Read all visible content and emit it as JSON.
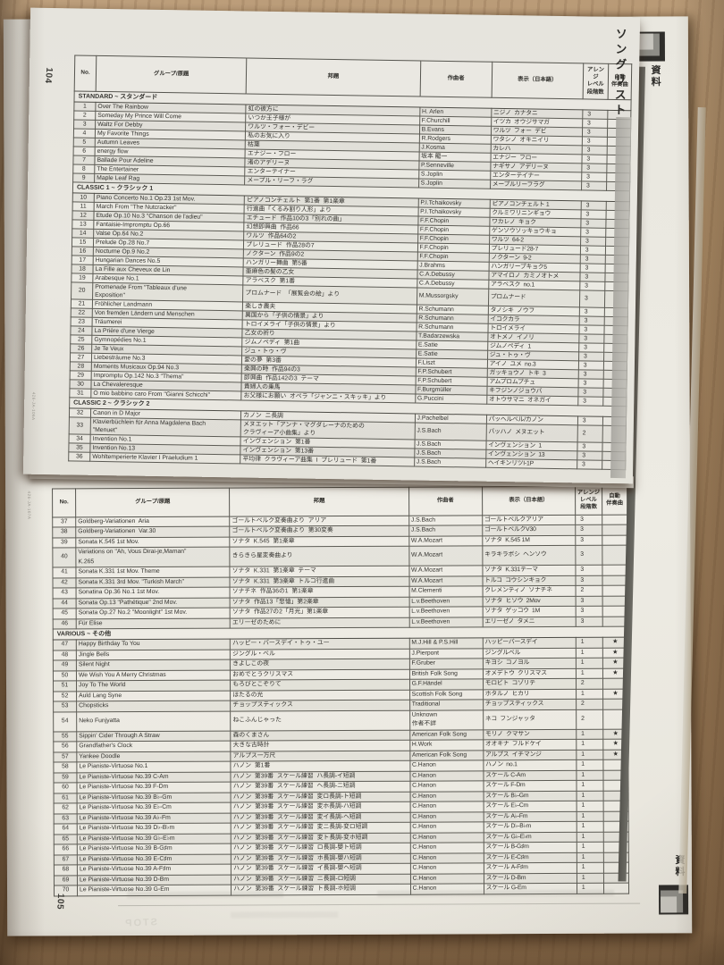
{
  "labels": {
    "song_list": "ソングリスト",
    "shiryo": "資料"
  },
  "table_headers": {
    "no": "No.",
    "group": "グループ/原題",
    "title": "邦題",
    "composer": "作曲者",
    "display": "表示（日本語）",
    "level": "アレンジ\nレベル\n段階数",
    "auto": "自動\n伴奏曲"
  },
  "page_top": {
    "page_number": "104",
    "side_code": "426-JA-106A",
    "blocks": [
      {
        "section": "STANDARD ~ スタンダード"
      },
      [
        "1",
        "Over The Rainbow",
        "虹の彼方に",
        "H. Arlen",
        "ニジノ  カナタニ",
        "3",
        ""
      ],
      [
        "2",
        "Someday My Prince Will Come",
        "いつか王子様が",
        "F.Churchill",
        "イツカ  オウジサマガ",
        "3",
        ""
      ],
      [
        "3",
        "Waltz For Debby",
        "ワルツ・フォー・デビー",
        "B.Evans",
        "ワルツ  フォー  デビ",
        "3",
        ""
      ],
      [
        "4",
        "My Favorite Things",
        "私のお気に入り",
        "R.Rodgers",
        "ワタシノ  オキニイリ",
        "3",
        ""
      ],
      [
        "5",
        "Autumn Leaves",
        "枯葉",
        "J.Kosma",
        "カレハ",
        "3",
        ""
      ],
      [
        "6",
        "energy flow",
        "エナジー・フロー",
        "坂本 龍一",
        "エナジー  フロー",
        "3",
        ""
      ],
      [
        "7",
        "Ballade Pour Adeline",
        "渚のアデリーヌ",
        "P.Senneville",
        "ナギサノ  アデリーヌ",
        "3",
        ""
      ],
      [
        "8",
        "The Entertainer",
        "エンターテイナー",
        "S.Joplin",
        "エンターテイナー",
        "3",
        ""
      ],
      [
        "9",
        "Maple Leaf Rag",
        "メープル・リーフ・ラグ",
        "S.Joplin",
        "メープルリーフラグ",
        "3",
        ""
      ],
      {
        "section": "CLASSIC 1 ~ クラシック 1"
      },
      [
        "10",
        "Piano Concerto No.1 Op.23 1st Mov.",
        "ピアノコンチェルト  第1番  第1楽章",
        "P.I.Tchaikovsky",
        "ピアノコンチェルト 1",
        "3",
        ""
      ],
      [
        "11",
        "March From \"The Nutcracker\"",
        "行進曲「くるみ割り人形」より",
        "P.I.Tchaikovsky",
        "クルミワリニンギョウ",
        "3",
        ""
      ],
      [
        "12",
        "Etude Op.10 No.3 \"Chanson de l'adieu\"",
        "エチュード  作品10の3「別れの曲」",
        "F.F.Chopin",
        "ワカレノ  キョク",
        "3",
        ""
      ],
      [
        "13",
        "Fantaisie-Impromptu Op.66",
        "幻想即興曲  作品66",
        "F.F.Chopin",
        "ゲンソウソッキョウキョ",
        "3",
        ""
      ],
      [
        "14",
        "Valse Op.64 No.2",
        "ワルツ  作品64の2",
        "F.F.Chopin",
        "ワルツ  64-2",
        "3",
        ""
      ],
      [
        "15",
        "Prelude Op.28 No.7",
        "プレリュード  作品28の7",
        "F.F.Chopin",
        "プレリュード28-7",
        "3",
        ""
      ],
      [
        "16",
        "Nocturne Op.9 No.2",
        "ノクターン  作品9の2",
        "F.F.Chopin",
        "ノクターン  9-2",
        "3",
        ""
      ],
      [
        "17",
        "Hungarian Dances No.5",
        "ハンガリー舞曲  第5番",
        "J.Brahms",
        "ハンガリーブキョク5",
        "3",
        ""
      ],
      [
        "18",
        "La Fille aux Cheveux de Lin",
        "亜麻色の髪の乙女",
        "C.A.Debussy",
        "アマイロノ  カミノオトメ",
        "3",
        ""
      ],
      [
        "19",
        "Arabesque No.1",
        "アラベスク  第1番",
        "C.A.Debussy",
        "アラベスク  no.1",
        "3",
        ""
      ],
      [
        "20",
        "Promenade From \"Tableaux d'une\nExposition\"",
        "プロムナード  「展覧会の絵」より",
        "M.Mussorgsky",
        "プロムナード",
        "3",
        ""
      ],
      [
        "21",
        "Fröhlicher Landmann",
        "楽しき農夫",
        "R.Schumann",
        "タノシキ  ノウフ",
        "3",
        ""
      ],
      [
        "22",
        "Von fremden Ländern und Menschen",
        "異国から「子供の情景」より",
        "R.Schumann",
        "イコクカラ",
        "3",
        ""
      ],
      [
        "23",
        "Träumerei",
        "トロイメライ「子供の情景」より",
        "R.Schumann",
        "トロイメライ",
        "3",
        ""
      ],
      [
        "24",
        "La Prière d'une Vierge",
        "乙女の祈り",
        "T.Badarzewska",
        "オトメノ  イノリ",
        "3",
        ""
      ],
      [
        "25",
        "Gymnopédies No.1",
        "ジムノペディ  第1曲",
        "E.Satie",
        "ジムノペディ  1",
        "3",
        ""
      ],
      [
        "26",
        "Je Te Veux",
        "ジュ・トゥ・ヴ",
        "E.Satie",
        "ジュ・トゥ・ヴ",
        "3",
        ""
      ],
      [
        "27",
        "Liebesträume No.3",
        "愛の夢  第3番",
        "F.Liszt",
        "アイノ  ユメ  no.3",
        "3",
        ""
      ],
      [
        "28",
        "Moments Musicaux Op.94 No.3",
        "楽興の時  作品94の3",
        "F.P.Schubert",
        "ガッキョウノ  トキ  3",
        "3",
        ""
      ],
      [
        "29",
        "Impromptu Op.142 No.3 \"Thema\"",
        "即興曲  作品142の3  テーマ",
        "F.P.Schubert",
        "アムプロムプチュ",
        "3",
        ""
      ],
      [
        "30",
        "La Chevaleresque",
        "貴婦人の乗馬",
        "F.Burgmüller",
        "キフジンノジョウバ",
        "3",
        ""
      ],
      [
        "31",
        "O mio babbino caro From \"Gianni Schicchi\"",
        "お父様にお願い  オペラ「ジャンニ・スキッキ」より",
        "G.Puccini",
        "オトウサマニ  オネガイ",
        "3",
        ""
      ],
      {
        "section": "CLASSIC 2 ~ クラシック 2"
      },
      [
        "32",
        "Canon in D Major",
        "カノン  ニ長調",
        "J.Pachelbel",
        "パッヘルベル/カノン",
        "3",
        ""
      ],
      [
        "33",
        "Klavierbüchlein für Anna Magdalena Bach\n\"Menuet\"",
        "メヌエット「アンナ・マグダレーナのための\nクラヴィーア小曲集」より",
        "J.S.Bach",
        "バッハノ  メヌエット",
        "2",
        ""
      ],
      [
        "34",
        "Invention No.1",
        "インヴェンション  第1番",
        "J.S.Bach",
        "インヴェンション  1",
        "3",
        ""
      ],
      [
        "35",
        "Invention No.13",
        "インヴェンション  第13番",
        "J.S.Bach",
        "インヴェンション  13",
        "3",
        ""
      ],
      [
        "36",
        "Wohltemperierte Klavier I Praeludium 1",
        "平均律  クラヴィーア曲集  I  プレリュード  第1番",
        "J.S.Bach",
        "ヘイキンリツI-1P",
        "3",
        ""
      ]
    ]
  },
  "page_bottom": {
    "page_number": "105",
    "side_code": "426-JA-107A",
    "blocks": [
      [
        "37",
        "Goldberg-Variationen  Aria",
        "ゴールトベルク変奏曲より  アリア",
        "J.S.Bach",
        "ゴールトベルクアリア",
        "3",
        ""
      ],
      [
        "38",
        "Goldberg-Variationen  Var.30",
        "ゴールトベルク変奏曲より  第30変奏",
        "J.S.Bach",
        "ゴールトベルクV30",
        "3",
        ""
      ],
      [
        "39",
        "Sonata K.545 1st Mov.",
        "ソナタ  K.545  第1楽章",
        "W.A.Mozart",
        "ソナタ  K.545 1M",
        "3",
        ""
      ],
      [
        "40",
        "Variations on \"Ah, Vous Dirai-je,Maman\"\nK.265",
        "きらきら星変奏曲より",
        "W.A.Mozart",
        "キラキラボシ  ヘンソウ",
        "3",
        ""
      ],
      [
        "41",
        "Sonata K.331 1st Mov. Theme",
        "ソナタ  K.331  第1楽章  テーマ",
        "W.A.Mozart",
        "ソナタ  K.331テーマ",
        "3",
        ""
      ],
      [
        "42",
        "Sonata K.331 3rd Mov. \"Turkish March\"",
        "ソナタ  K.331  第3楽章  トルコ行進曲",
        "W.A.Mozart",
        "トルコ  コウシンキョク",
        "3",
        ""
      ],
      [
        "43",
        "Sonatina Op.36 No.1 1st Mov.",
        "ソナチネ  作品36の1  第1楽章",
        "M.Clementi",
        "クレメンティノ  ソナチネ",
        "2",
        ""
      ],
      [
        "44",
        "Sonata Op.13 \"Pathétique\" 2nd Mov.",
        "ソナタ  作品13「悲愴」第2楽章",
        "L.v.Beethoven",
        "ソナタ  ヒソウ  2Mov",
        "3",
        ""
      ],
      [
        "45",
        "Sonata Op.27 No.2 \"Moonlight\" 1st Mov.",
        "ソナタ  作品27の2「月光」第1楽章",
        "L.v.Beethoven",
        "ソナタ  ゲッコウ  1M",
        "3",
        ""
      ],
      [
        "46",
        "Für Elise",
        "エリーゼのために",
        "L.v.Beethoven",
        "エリーゼノ  タメニ",
        "3",
        ""
      ],
      {
        "section": "VARIOUS ~ その他"
      },
      [
        "47",
        "Happy Birthday To You",
        "ハッピー・バースデイ・トゥ・ユー",
        "M.J.Hill & P.S.Hill",
        "ハッピーバースデイ",
        "1",
        "★"
      ],
      [
        "48",
        "Jingle Bells",
        "ジングル・ベル",
        "J.Pierpont",
        "ジングルベル",
        "1",
        "★"
      ],
      [
        "49",
        "Silent Night",
        "きよしこの夜",
        "F.Gruber",
        "キヨシ  コノヨル",
        "1",
        "★"
      ],
      [
        "50",
        "We Wish You A Merry Christmas",
        "おめでとうクリスマス",
        "British Folk Song",
        "オメデトウ  クリスマス",
        "1",
        "★"
      ],
      [
        "51",
        "Joy To The World",
        "もろびとこぞりて",
        "G.F.Händel",
        "モロビト  コゾリテ",
        "2",
        ""
      ],
      [
        "52",
        "Auld Lang Syne",
        "ほたるの光",
        "Scottish Folk Song",
        "ホタルノ  ヒカリ",
        "1",
        "★"
      ],
      [
        "53",
        "Chopsticks",
        "チョップスティックス",
        "Traditional",
        "チョップスティックス",
        "2",
        ""
      ],
      [
        "54",
        "Neko Funjyatta",
        "ねこふんじゃった",
        "Unknown\n作者不詳",
        "ネコ  フンジャッタ",
        "2",
        ""
      ],
      [
        "55",
        "Sippin' Cider Through A Straw",
        "森のくまさん",
        "American Folk Song",
        "モリノ  クマサン",
        "1",
        "★"
      ],
      [
        "56",
        "Grandfather's Clock",
        "大きな古時計",
        "H.Work",
        "オオキナ  フルドケイ",
        "1",
        "★"
      ],
      [
        "57",
        "Yankee Doodle",
        "アルプス一万尺",
        "American Folk Song",
        "アルプス  イチマンジ",
        "1",
        "★"
      ],
      [
        "58",
        "Le Pianiste-Virtuose No.1",
        "ハノン  第1番",
        "C.Hanon",
        "ハノン  no.1",
        "1",
        ""
      ],
      [
        "59",
        "Le Pianiste-Virtuose No.39 C-Am",
        "ハノン  第39番  スケール練習  ハ長調-イ短調",
        "C.Hanon",
        "スケール C-Am",
        "1",
        ""
      ],
      [
        "60",
        "Le Pianiste-Virtuose No.39 F-Dm",
        "ハノン  第39番  スケール練習  ヘ長調-ニ短調",
        "C.Hanon",
        "スケール F-Dm",
        "1",
        ""
      ],
      [
        "61",
        "Le Pianiste-Virtuose No.39 B♭-Gm",
        "ハノン  第39番  スケール練習  変ロ長調-ト短調",
        "C.Hanon",
        "スケール B♭-Gm",
        "1",
        ""
      ],
      [
        "62",
        "Le Pianiste-Virtuose No.39 E♭-Cm",
        "ハノン  第39番  スケール練習  変ホ長調-ハ短調",
        "C.Hanon",
        "スケール E♭-Cm",
        "1",
        ""
      ],
      [
        "63",
        "Le Pianiste-Virtuose No.39 A♭-Fm",
        "ハノン  第39番  スケール練習  変イ長調-ヘ短調",
        "C.Hanon",
        "スケール A♭-Fm",
        "1",
        ""
      ],
      [
        "64",
        "Le Pianiste-Virtuose No.39 D♭-B♭m",
        "ハノン  第39番  スケール練習  変ニ長調-変ロ短調",
        "C.Hanon",
        "スケール D♭-B♭m",
        "1",
        ""
      ],
      [
        "65",
        "Le Pianiste-Virtuose No.39 G♭-E♭m",
        "ハノン  第39番  スケール練習  変ト長調-変ホ短調",
        "C.Hanon",
        "スケール G♭-E♭m",
        "1",
        ""
      ],
      [
        "66",
        "Le Pianiste-Virtuose No.39 B-G♯m",
        "ハノン  第39番  スケール練習  ロ長調-嬰ト短調",
        "C.Hanon",
        "スケール B-G♯m",
        "1",
        ""
      ],
      [
        "67",
        "Le Pianiste-Virtuose No.39 E-C♯m",
        "ハノン  第39番  スケール練習  ホ長調-嬰ハ短調",
        "C.Hanon",
        "スケール E-C♯m",
        "1",
        ""
      ],
      [
        "68",
        "Le Pianiste-Virtuose No.39 A-F♯m",
        "ハノン  第39番  スケール練習  イ長調-嬰ヘ短調",
        "C.Hanon",
        "スケール A-F♯m",
        "1",
        ""
      ],
      [
        "69",
        "Le Pianiste-Virtuose No.39 D-Bm",
        "ハノン  第39番  スケール練習  ニ長調-ロ短調",
        "C.Hanon",
        "スケール D-Bm",
        "1",
        ""
      ],
      [
        "70",
        "Le Pianiste-Virtuose No.39 G-Em",
        "ハノン  第39番  スケール練習  ト長調-ホ短調",
        "C.Hanon",
        "スケール G-Em",
        "1",
        ""
      ]
    ]
  },
  "artifacts": {
    "stop_ghost": "STOP"
  }
}
